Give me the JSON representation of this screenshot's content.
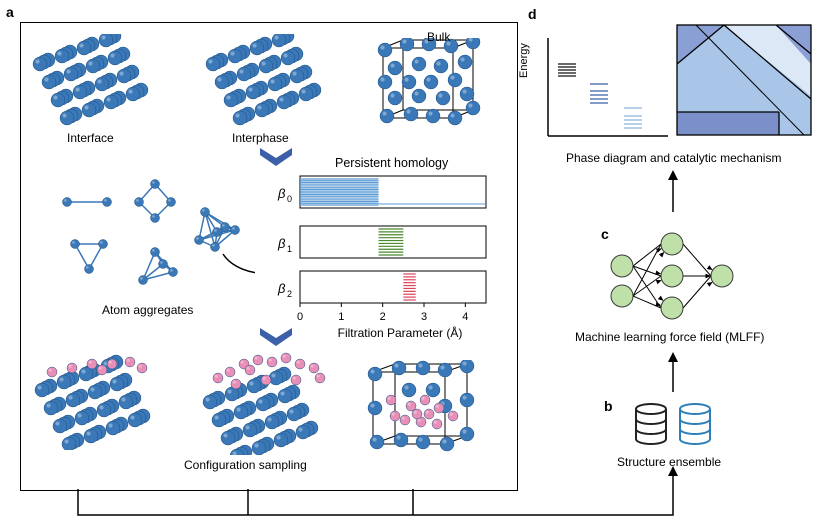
{
  "panels": {
    "a": {
      "letter": "a",
      "structures_top": [
        "Interface",
        "Interphase",
        "Bulk"
      ],
      "ph_title": "Persistent  homology",
      "betti": [
        {
          "symbol": "β",
          "sub": "0",
          "bar_start": 0.0,
          "bar_end": 1.9,
          "color": "#5b9bd5"
        },
        {
          "symbol": "β",
          "sub": "1",
          "bar_start": 1.9,
          "bar_end": 2.5,
          "color": "#4a8a2e"
        },
        {
          "symbol": "β",
          "sub": "2",
          "bar_start": 2.5,
          "bar_end": 2.8,
          "color": "#d9435a"
        }
      ],
      "axis": {
        "ticks": [
          "0",
          "1",
          "2",
          "3",
          "4"
        ],
        "min": 0,
        "max": 4.5,
        "label": "Filtration Parameter (Å)"
      },
      "aggregates_label": "Atom aggregates",
      "sampling_label": "Configuration sampling"
    },
    "b": {
      "letter": "b",
      "label": "Structure ensemble"
    },
    "c": {
      "letter": "c",
      "label": "Machine learning force field (MLFF)"
    },
    "d": {
      "letter": "d",
      "ylabel": "Energy",
      "label": "Phase diagram and catalytic mechanism"
    }
  },
  "colors": {
    "atom": "#3a78b8",
    "dopant": "#e88fb8",
    "node": "#bfe0a8",
    "arrow": "#3b5fa8",
    "phase_dark": "#8a9fd4",
    "phase_mid": "#a9c6e8",
    "phase_light": "#dce8f5"
  }
}
